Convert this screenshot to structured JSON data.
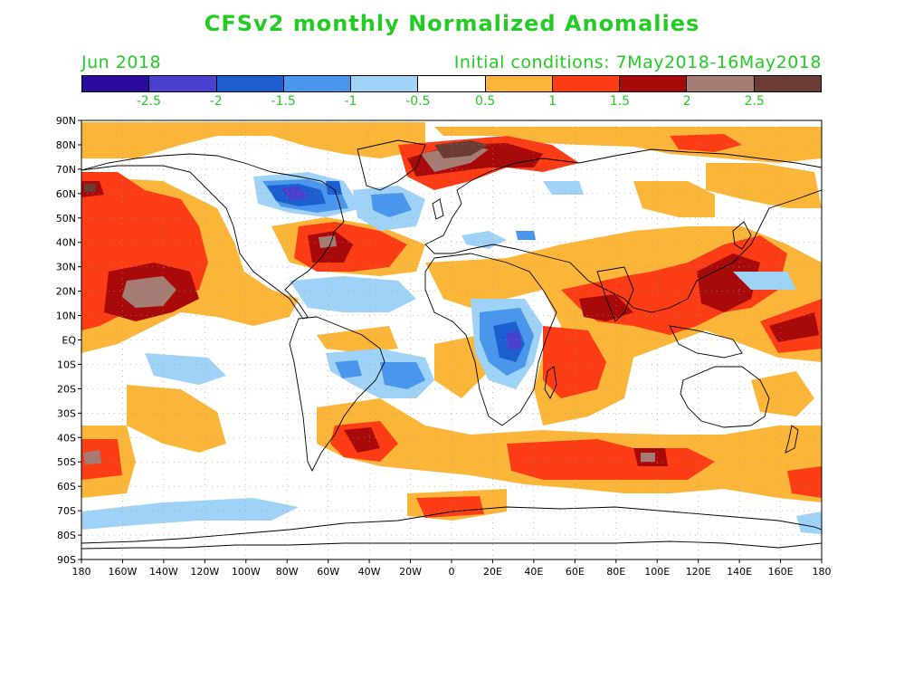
{
  "title": "CFSv2 monthly Normalized Anomalies",
  "month_label": "Jun 2018",
  "init_label": "Initial conditions: 7May2018-16May2018",
  "colorbar": {
    "colors": [
      "#2b0a9e",
      "#4a3fcf",
      "#1e5fd0",
      "#4a96ec",
      "#9fd2f7",
      "#ffffff",
      "#fbb63a",
      "#fb3c14",
      "#a80a0a",
      "#a47c74",
      "#6a3c33"
    ],
    "labels": [
      "-2.5",
      "-2",
      "-1.5",
      "-1",
      "-0.5",
      "0.5",
      "1",
      "1.5",
      "2",
      "2.5"
    ]
  },
  "map": {
    "lat_labels": [
      "90N",
      "80N",
      "70N",
      "60N",
      "50N",
      "40N",
      "30N",
      "20N",
      "10N",
      "EQ",
      "10S",
      "20S",
      "30S",
      "40S",
      "50S",
      "60S",
      "70S",
      "80S",
      "90S"
    ],
    "lon_labels": [
      "180",
      "160W",
      "140W",
      "120W",
      "100W",
      "80W",
      "60W",
      "40W",
      "20W",
      "0",
      "20E",
      "40E",
      "60E",
      "80E",
      "100E",
      "120E",
      "140E",
      "160E",
      "180"
    ]
  }
}
